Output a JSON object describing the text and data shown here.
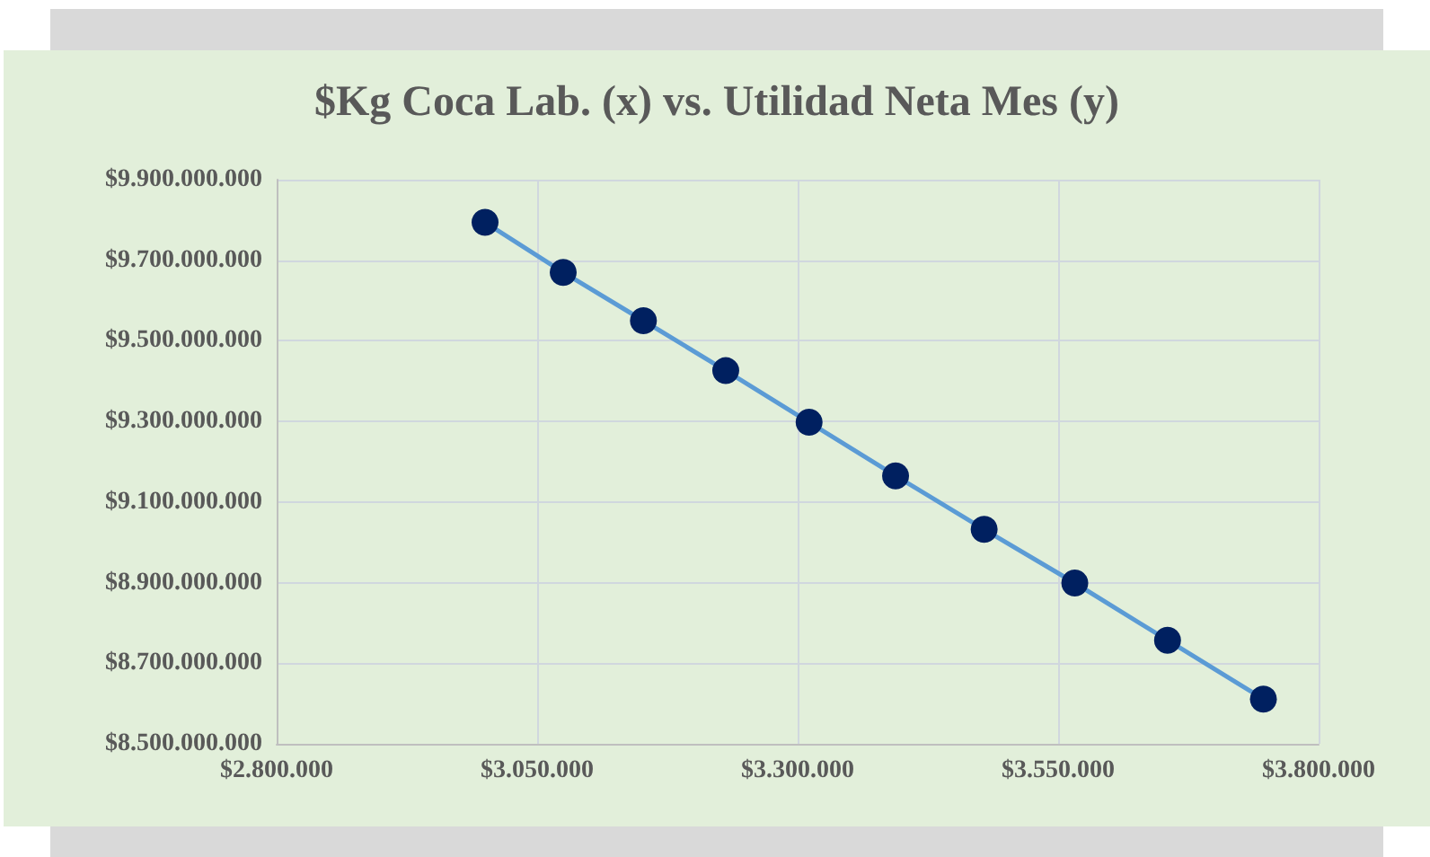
{
  "chart_data": {
    "type": "line",
    "title": "$Kg Coca Lab. (x) vs. Utilidad Neta Mes (y)",
    "x": [
      3000000,
      3075000,
      3152000,
      3231000,
      3311000,
      3394000,
      3479000,
      3566000,
      3655000,
      3747000
    ],
    "series": [
      {
        "color": "#002060",
        "values": [
          9794000000,
          9670000000,
          9550000000,
          9426000000,
          9298000000,
          9165000000,
          9032000000,
          8899000000,
          8757000000,
          8611000000
        ]
      }
    ],
    "xlim": [
      2800000,
      3800000
    ],
    "xticks": [
      {
        "value": 2800000,
        "label": "$2.800.000"
      },
      {
        "value": 3050000,
        "label": "$3.050.000"
      },
      {
        "value": 3300000,
        "label": "$3.300.000"
      },
      {
        "value": 3550000,
        "label": "$3.550.000"
      },
      {
        "value": 3800000,
        "label": "$3.800.000"
      }
    ],
    "ylim": [
      8500000000,
      9900000000
    ],
    "yticks": [
      {
        "value": 8500000000,
        "label": "$8.500.000.000"
      },
      {
        "value": 8700000000,
        "label": "$8.700.000.000"
      },
      {
        "value": 8900000000,
        "label": "$8.900.000.000"
      },
      {
        "value": 9100000000,
        "label": "$9.100.000.000"
      },
      {
        "value": 9300000000,
        "label": "$9.300.000.000"
      },
      {
        "value": 9500000000,
        "label": "$9.500.000.000"
      },
      {
        "value": 9700000000,
        "label": "$9.700.000.000"
      },
      {
        "value": 9900000000,
        "label": "$9.900.000.000"
      }
    ],
    "grid": true,
    "marker": "circle",
    "line_style": "solid"
  }
}
